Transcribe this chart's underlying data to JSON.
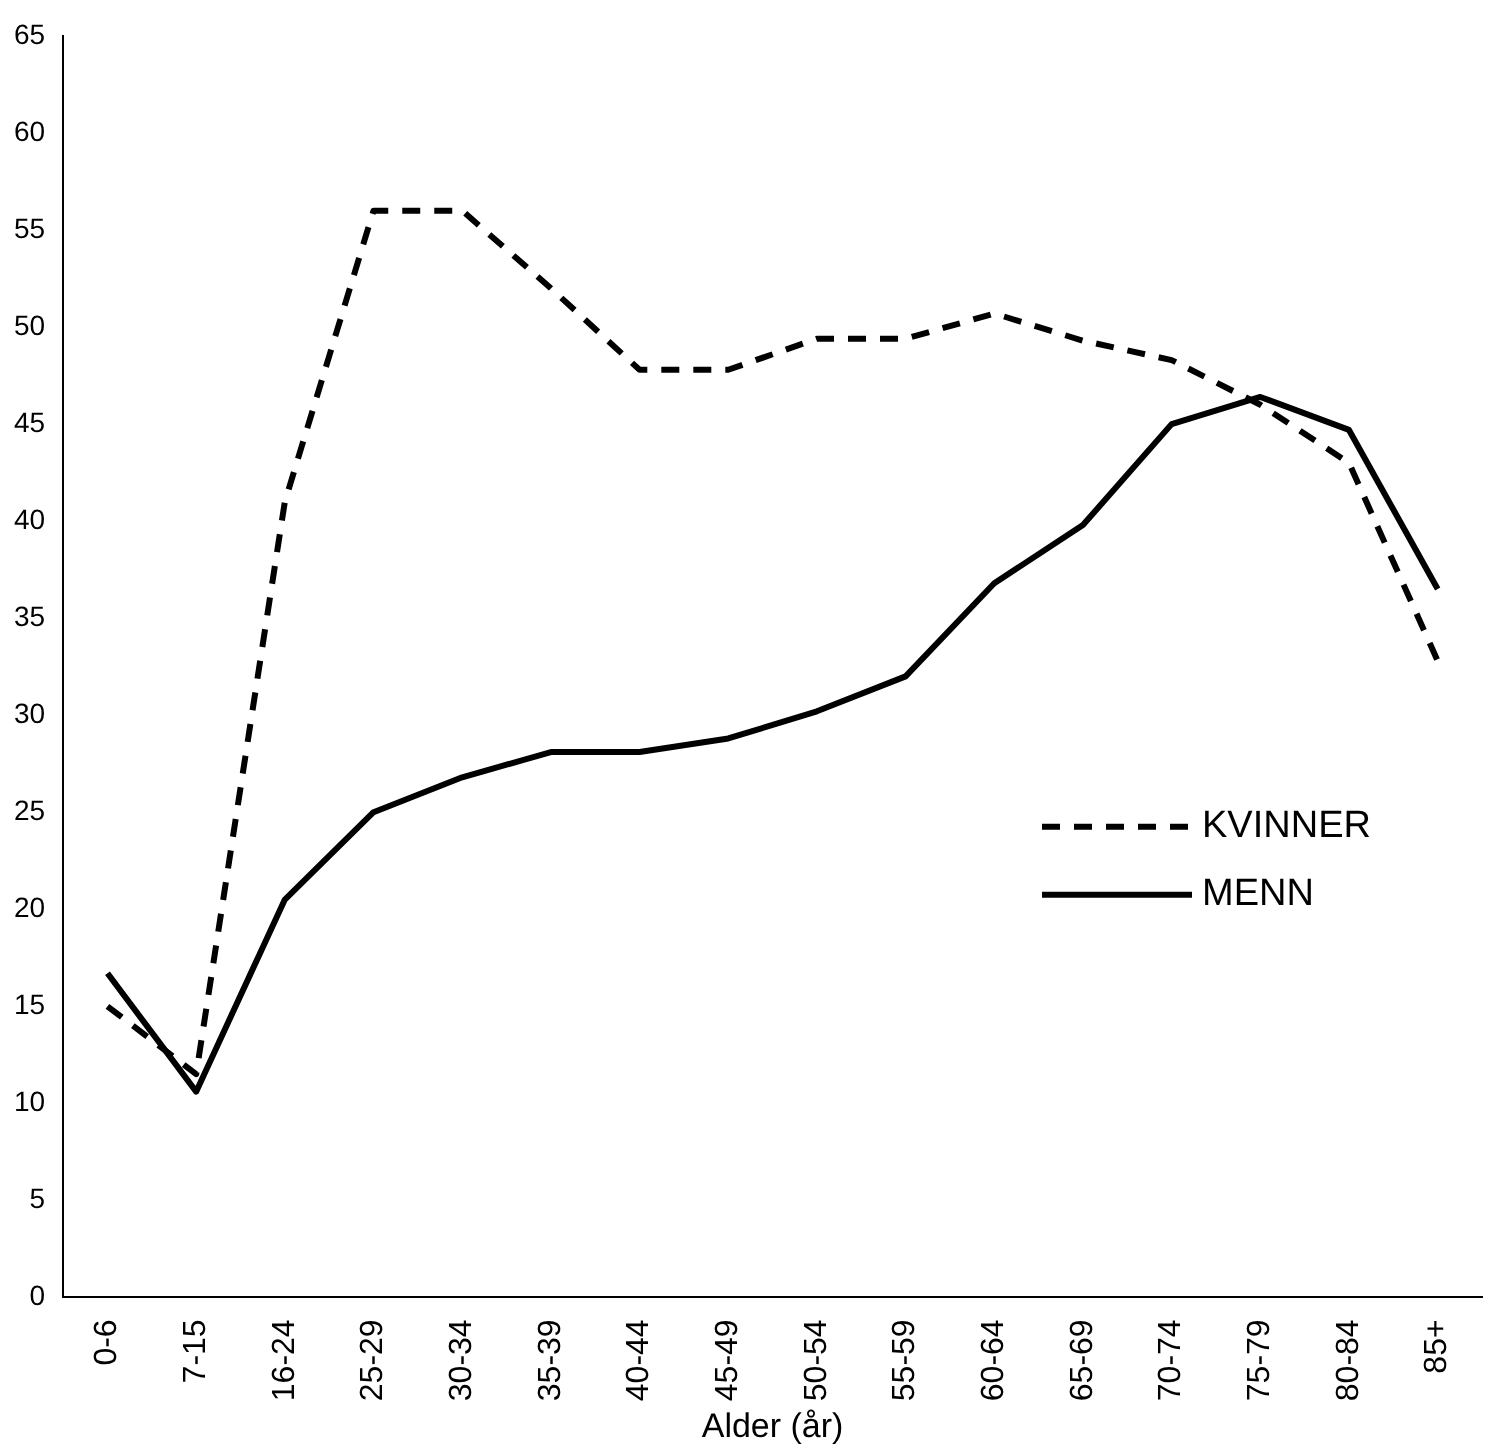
{
  "chart_data": {
    "type": "line",
    "xlabel": "Alder (år)",
    "categories": [
      "0-6",
      "7-15",
      "16-24",
      "25-29",
      "30-34",
      "35-39",
      "40-44",
      "45-49",
      "50-54",
      "55-59",
      "60-64",
      "65-69",
      "70-74",
      "75-79",
      "80-84",
      "85+"
    ],
    "ylim": [
      0,
      65
    ],
    "yticks": [
      0,
      5,
      10,
      15,
      20,
      25,
      30,
      35,
      40,
      45,
      50,
      55,
      60,
      65
    ],
    "grid": false,
    "legend": "right",
    "marker": "none",
    "series": [
      {
        "name": "KVINNER",
        "color": "#000000",
        "line_style": "dashed",
        "values": [
          15,
          11.5,
          41,
          56,
          56,
          52,
          47.8,
          47.8,
          49.4,
          49.4,
          50.7,
          49.3,
          48.3,
          46,
          43,
          32.8
        ]
      },
      {
        "name": "MENN",
        "color": "#000000",
        "line_style": "solid",
        "values": [
          16.7,
          10.6,
          20.5,
          25,
          26.8,
          28.1,
          28.1,
          28.8,
          30.2,
          32,
          36.8,
          39.8,
          45,
          46.4,
          44.7,
          36.5
        ]
      }
    ]
  }
}
